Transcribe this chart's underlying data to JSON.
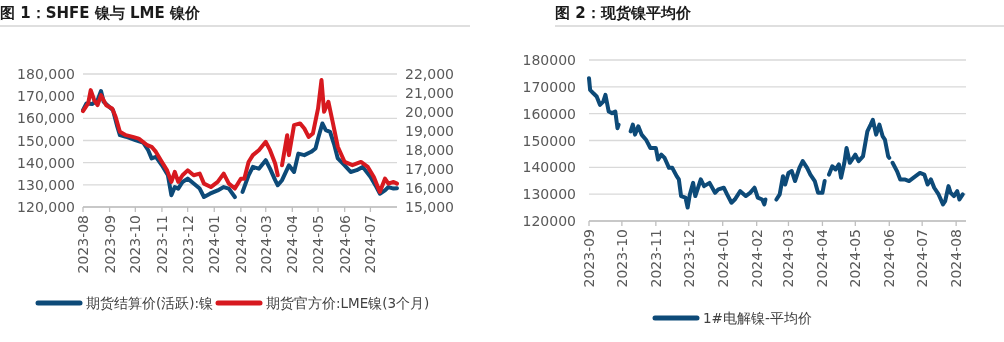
{
  "chart_data": [
    {
      "type": "line",
      "title": "图 1：SHFE 镍与 LME 镍价",
      "grid": "y",
      "legend": "bottom",
      "line_style": "solid",
      "marker": "none",
      "xlim": [
        "2023-08-01",
        "2024-08-01"
      ],
      "xticks": [
        "2023-08",
        "2023-09",
        "2023-10",
        "2023-11",
        "2023-12",
        "2024-01",
        "2024-02",
        "2024-03",
        "2024-04",
        "2024-05",
        "2024-06",
        "2024-07"
      ],
      "ylim": [
        120000,
        180000
      ],
      "yticks": [
        {
          "value": 120000,
          "label": "120,000"
        },
        {
          "value": 130000,
          "label": "130,000"
        },
        {
          "value": 140000,
          "label": "140,000"
        },
        {
          "value": 150000,
          "label": "150,000"
        },
        {
          "value": 160000,
          "label": "160,000"
        },
        {
          "value": 170000,
          "label": "170,000"
        },
        {
          "value": 180000,
          "label": "180,000"
        }
      ],
      "y2lim": [
        15000,
        22000
      ],
      "y2ticks": [
        {
          "value": 15000,
          "label": "15,000"
        },
        {
          "value": 16000,
          "label": "16,000"
        },
        {
          "value": 17000,
          "label": "17,000"
        },
        {
          "value": 18000,
          "label": "18,000"
        },
        {
          "value": 19000,
          "label": "19,000"
        },
        {
          "value": 20000,
          "label": "20,000"
        },
        {
          "value": 21000,
          "label": "21,000"
        },
        {
          "value": 22000,
          "label": "22,000"
        }
      ],
      "series": [
        {
          "name": "期货结算价(活跃):镍",
          "color": "#0d4a78",
          "x": [
            "2023-08-01",
            "2023-08-05",
            "2023-08-12",
            "2023-08-18",
            "2023-08-22",
            "2023-08-25",
            "2023-09-01",
            "2023-09-05",
            "2023-09-10",
            "2023-09-13",
            "2023-09-20",
            "2023-10-01",
            "2023-10-10",
            "2023-10-16",
            "2023-10-20",
            "2023-10-25",
            "2023-11-01",
            "2023-11-08",
            "2023-11-12",
            "2023-11-16",
            "2023-11-20",
            "2023-11-25",
            "2023-12-01",
            "2023-12-08",
            "2023-12-15",
            "2023-12-20",
            "2023-12-27",
            "2024-01-05",
            "2024-01-12",
            "2024-01-18",
            "2024-01-25",
            "2024-01-30",
            "2024-02-03",
            "2024-02-10",
            "2024-02-15",
            "2024-02-22",
            "2024-03-01",
            "2024-03-06",
            "2024-03-12",
            "2024-03-15",
            "2024-03-20",
            "2024-03-28",
            "2024-04-03",
            "2024-04-08",
            "2024-04-15",
            "2024-04-23",
            "2024-04-28",
            "2024-05-01",
            "2024-05-06",
            "2024-05-10",
            "2024-05-15",
            "2024-05-20",
            "2024-05-24",
            "2024-06-01",
            "2024-06-08",
            "2024-06-15",
            "2024-06-22",
            "2024-07-01",
            "2024-07-08",
            "2024-07-12",
            "2024-07-18",
            "2024-07-22",
            "2024-07-28",
            "2024-08-01"
          ],
          "values": [
            163700,
            166700,
            166500,
            168200,
            172300,
            167500,
            165000,
            163700,
            156200,
            152400,
            151700,
            150200,
            149100,
            145600,
            141900,
            142600,
            138800,
            134300,
            125300,
            129000,
            128300,
            131300,
            132800,
            130600,
            128300,
            124500,
            126000,
            127500,
            129000,
            128300,
            124500,
            null,
            126800,
            134300,
            138100,
            137300,
            141100,
            137300,
            132100,
            129800,
            132100,
            138800,
            135800,
            144100,
            143400,
            144900,
            146400,
            150900,
            157700,
            154700,
            153900,
            147900,
            141900,
            138800,
            135800,
            136600,
            138100,
            133600,
            129000,
            126000,
            127500,
            129000,
            128300,
            128500
          ]
        },
        {
          "name": "期货官方价:LME镍(3个月)",
          "color": "#d7191f",
          "axis": "y2",
          "x": [
            "2023-08-01",
            "2023-08-07",
            "2023-08-10",
            "2023-08-14",
            "2023-08-18",
            "2023-08-22",
            "2023-08-28",
            "2023-09-04",
            "2023-09-08",
            "2023-09-13",
            "2023-09-20",
            "2023-09-28",
            "2023-10-05",
            "2023-10-15",
            "2023-10-20",
            "2023-10-25",
            "2023-11-01",
            "2023-11-07",
            "2023-11-12",
            "2023-11-16",
            "2023-11-20",
            "2023-11-25",
            "2023-12-01",
            "2023-12-08",
            "2023-12-15",
            "2023-12-20",
            "2023-12-28",
            "2024-01-05",
            "2024-01-12",
            "2024-01-18",
            "2024-01-25",
            "2024-02-01",
            "2024-02-05",
            "2024-02-10",
            "2024-02-15",
            "2024-02-22",
            "2024-03-01",
            "2024-03-06",
            "2024-03-12",
            "2024-03-15",
            "2024-03-17",
            "2024-03-20",
            "2024-03-26",
            "2024-03-28",
            "2024-04-03",
            "2024-04-10",
            "2024-04-15",
            "2024-04-20",
            "2024-04-25",
            "2024-05-01",
            "2024-05-05",
            "2024-05-08",
            "2024-05-13",
            "2024-05-18",
            "2024-05-24",
            "2024-06-01",
            "2024-06-10",
            "2024-06-20",
            "2024-06-28",
            "2024-07-05",
            "2024-07-12",
            "2024-07-18",
            "2024-07-22",
            "2024-07-28",
            "2024-08-01"
          ],
          "values": [
            20050,
            20450,
            21150,
            20630,
            20360,
            20890,
            20360,
            20190,
            19750,
            18960,
            18780,
            18690,
            18600,
            18250,
            18170,
            17900,
            17370,
            16930,
            16320,
            16850,
            16320,
            16670,
            16930,
            16670,
            16760,
            16230,
            16050,
            16320,
            16760,
            16230,
            15970,
            16490,
            16490,
            17370,
            17730,
            17990,
            18430,
            17990,
            17290,
            16670,
            null,
            17200,
            18780,
            17730,
            19310,
            19400,
            19130,
            18690,
            18870,
            20190,
            21680,
            20010,
            20540,
            19480,
            18170,
            17370,
            17200,
            17370,
            17110,
            16580,
            15790,
            16490,
            16230,
            16320,
            16230
          ]
        }
      ]
    },
    {
      "type": "line",
      "title": "图 2：现货镍平均价",
      "grid": "y",
      "legend": "bottom",
      "line_style": "solid",
      "marker": "none",
      "xlim": [
        "2023-09-01",
        "2024-08-10"
      ],
      "xticks": [
        "2023-09",
        "2023-10",
        "2023-11",
        "2023-12",
        "2024-01",
        "2024-02",
        "2024-03",
        "2024-04",
        "2024-05",
        "2024-06",
        "2024-07",
        "2024-08"
      ],
      "ylim": [
        120000,
        180000
      ],
      "yticks": [
        120000,
        130000,
        140000,
        150000,
        160000,
        170000,
        180000
      ],
      "series": [
        {
          "name": "1#电解镍-平均价",
          "color": "#0d4a78",
          "x": [
            "2023-09-01",
            "2023-09-02",
            "2023-09-05",
            "2023-09-08",
            "2023-09-11",
            "2023-09-14",
            "2023-09-16",
            "2023-09-19",
            "2023-09-22",
            "2023-09-25",
            "2023-09-27",
            "2023-09-28",
            "2023-10-03",
            "2023-10-09",
            "2023-10-11",
            "2023-10-13",
            "2023-10-16",
            "2023-10-19",
            "2023-10-23",
            "2023-10-27",
            "2023-11-01",
            "2023-11-03",
            "2023-11-06",
            "2023-11-09",
            "2023-11-13",
            "2023-11-16",
            "2023-11-20",
            "2023-11-22",
            "2023-11-24",
            "2023-11-28",
            "2023-11-30",
            "2023-12-02",
            "2023-12-05",
            "2023-12-07",
            "2023-12-12",
            "2023-12-15",
            "2023-12-20",
            "2023-12-25",
            "2023-12-28",
            "2024-01-02",
            "2024-01-05",
            "2024-01-09",
            "2024-01-12",
            "2024-01-17",
            "2024-01-22",
            "2024-01-26",
            "2024-01-30",
            "2024-02-02",
            "2024-02-06",
            "2024-02-08",
            "2024-02-09",
            "2024-02-14",
            "2024-02-19",
            "2024-02-22",
            "2024-02-25",
            "2024-02-27",
            "2024-03-01",
            "2024-03-04",
            "2024-03-07",
            "2024-03-11",
            "2024-03-14",
            "2024-03-18",
            "2024-03-21",
            "2024-03-25",
            "2024-03-28",
            "2024-04-01",
            "2024-04-03",
            "2024-04-05",
            "2024-04-07",
            "2024-04-10",
            "2024-04-13",
            "2024-04-16",
            "2024-04-18",
            "2024-04-21",
            "2024-04-23",
            "2024-04-26",
            "2024-04-30",
            "2024-05-01",
            "2024-05-04",
            "2024-05-08",
            "2024-05-12",
            "2024-05-15",
            "2024-05-17",
            "2024-05-20",
            "2024-05-23",
            "2024-05-26",
            "2024-05-28",
            "2024-05-31",
            "2024-06-01",
            "2024-06-02",
            "2024-06-04",
            "2024-06-08",
            "2024-06-11",
            "2024-06-15",
            "2024-06-19",
            "2024-06-25",
            "2024-06-29",
            "2024-07-03",
            "2024-07-06",
            "2024-07-09",
            "2024-07-12",
            "2024-07-16",
            "2024-07-20",
            "2024-07-22",
            "2024-07-25",
            "2024-07-27",
            "2024-07-30",
            "2024-08-02",
            "2024-08-04",
            "2024-08-07"
          ],
          "values": [
            173200,
            168900,
            167600,
            166400,
            163300,
            164500,
            167000,
            160800,
            160200,
            160800,
            154600,
            155900,
            null,
            153400,
            155900,
            152200,
            155300,
            152200,
            150300,
            147200,
            147200,
            142900,
            144700,
            143500,
            139800,
            139800,
            136700,
            135500,
            129300,
            128700,
            125000,
            129900,
            134200,
            129300,
            135500,
            133000,
            134200,
            130500,
            131800,
            132400,
            129900,
            126800,
            128000,
            131100,
            129300,
            130500,
            132400,
            128700,
            128000,
            126200,
            128000,
            null,
            128000,
            129900,
            136700,
            133600,
            137900,
            138600,
            134900,
            139800,
            142300,
            139800,
            137300,
            134900,
            130500,
            130500,
            134900,
            null,
            137300,
            140400,
            139200,
            141100,
            136100,
            141700,
            147200,
            141700,
            144100,
            144700,
            142300,
            144100,
            153400,
            155900,
            157700,
            152200,
            155900,
            151500,
            150300,
            144100,
            143500,
            null,
            141700,
            138600,
            135500,
            135500,
            134900,
            136700,
            137900,
            137300,
            133600,
            135500,
            132400,
            129900,
            126200,
            127400,
            133000,
            130500,
            129300,
            131100,
            128000,
            129900
          ]
        }
      ]
    }
  ]
}
